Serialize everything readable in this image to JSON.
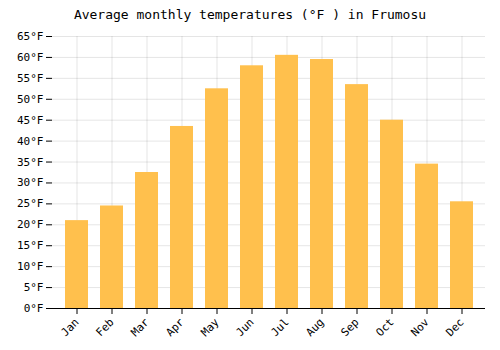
{
  "chart_data": {
    "type": "bar",
    "title": "Average monthly temperatures (°F ) in Frumosu",
    "categories": [
      "Jan",
      "Feb",
      "Mar",
      "Apr",
      "May",
      "Jun",
      "Jul",
      "Aug",
      "Sep",
      "Oct",
      "Nov",
      "Dec"
    ],
    "values": [
      21,
      24.5,
      32.5,
      43.5,
      52.5,
      58,
      60.5,
      59.5,
      53.5,
      45,
      34.5,
      25.5
    ],
    "color": "#FFC04D",
    "ylim": [
      0,
      65
    ],
    "yticks": [
      {
        "value": 0,
        "label": "0°F"
      },
      {
        "value": 5,
        "label": "5°F"
      },
      {
        "value": 10,
        "label": "10°F"
      },
      {
        "value": 15,
        "label": "15°F"
      },
      {
        "value": 20,
        "label": "20°F"
      },
      {
        "value": 25,
        "label": "25°F"
      },
      {
        "value": 30,
        "label": "30°F"
      },
      {
        "value": 35,
        "label": "35°F"
      },
      {
        "value": 40,
        "label": "40°F"
      },
      {
        "value": 45,
        "label": "45°F"
      },
      {
        "value": 50,
        "label": "50°F"
      },
      {
        "value": 55,
        "label": "55°F"
      },
      {
        "value": 60,
        "label": "60°F"
      },
      {
        "value": 65,
        "label": "65°F"
      }
    ],
    "grid": true
  }
}
